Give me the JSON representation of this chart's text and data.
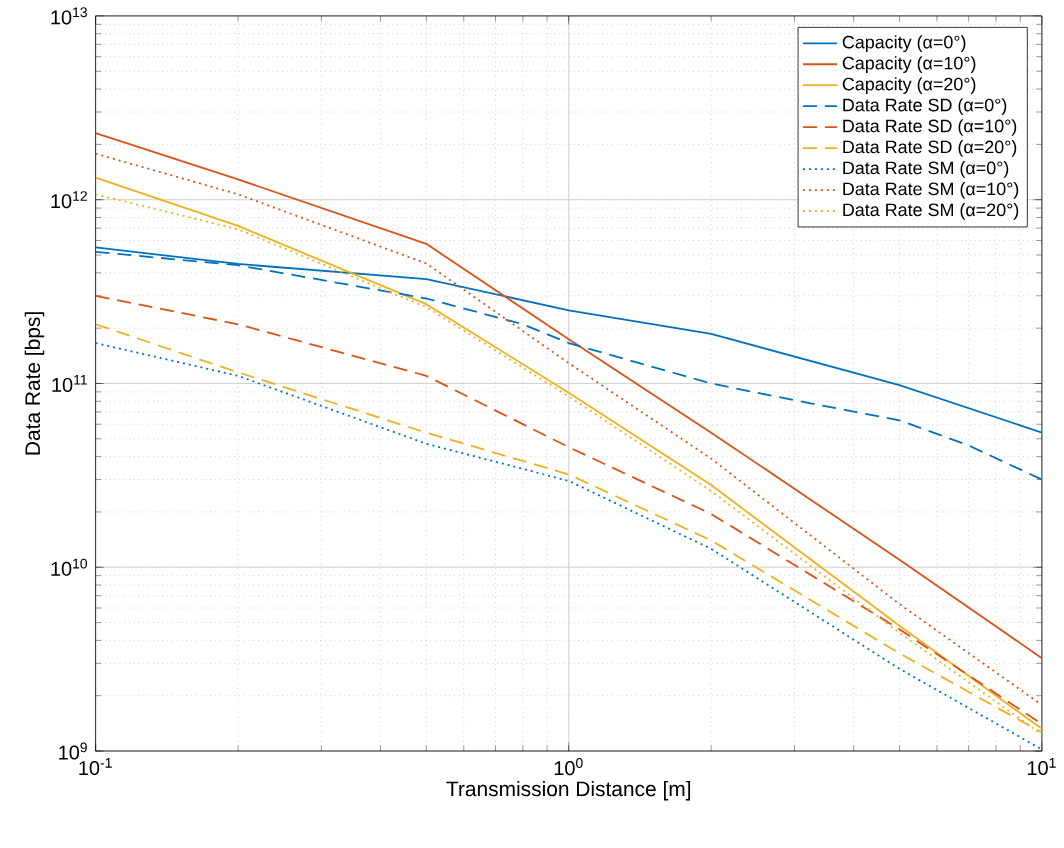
{
  "chart_data": {
    "type": "line",
    "xlabel": "Transmission Distance [m]",
    "ylabel": "Data Rate [bps]",
    "log": "xy",
    "grid": true,
    "legend": "top right",
    "xlim": [
      0.1,
      10
    ],
    "ylim": [
      1000000000.0,
      10000000000000.0
    ],
    "xticks": [
      {
        "value": 0.1,
        "label": "10$^{-1}$"
      },
      {
        "value": 1,
        "label": "10$^{0}$"
      },
      {
        "value": 10,
        "label": "10$^{1}$"
      }
    ],
    "yticks": [
      {
        "value": 1000000000.0,
        "label": "10$^{9}$"
      },
      {
        "value": 10000000000.0,
        "label": "10$^{10}$"
      },
      {
        "value": 100000000000.0,
        "label": "10$^{11}$"
      },
      {
        "value": 1000000000000.0,
        "label": "10$^{12}$"
      },
      {
        "value": 10000000000000.0,
        "label": "10$^{13}$"
      }
    ],
    "series": [
      {
        "name": "Capacity (α=0°)",
        "color": "#0072bd",
        "line_style": "solid",
        "x": [
          0.1,
          0.2,
          0.5,
          1,
          2,
          5,
          10
        ],
        "values": [
          550000000000.0,
          447000000000.0,
          370000000000.0,
          250000000000.0,
          186000000000.0,
          98000000000.0,
          54000000000.0
        ]
      },
      {
        "name": "Capacity (α=10°)",
        "color": "#d95319",
        "line_style": "solid",
        "x": [
          0.1,
          0.2,
          0.5,
          1,
          2,
          5,
          10
        ],
        "values": [
          2300000000000.0,
          1290000000000.0,
          575000000000.0,
          174000000000.0,
          54000000000.0,
          11000000000.0,
          3200000000.0
        ]
      },
      {
        "name": "Capacity (α=20°)",
        "color": "#edb120",
        "line_style": "solid",
        "x": [
          0.1,
          0.2,
          0.5,
          1,
          2,
          5,
          10
        ],
        "values": [
          1320000000000.0,
          720000000000.0,
          270000000000.0,
          89000000000.0,
          28000000000.0,
          4800000000.0,
          1320000000.0
        ]
      },
      {
        "name": "Data Rate SD (α=0°)",
        "color": "#0072bd",
        "line_style": "dashed",
        "x": [
          0.1,
          0.2,
          0.5,
          0.8,
          1,
          2,
          3,
          5,
          7,
          10
        ],
        "values": [
          520000000000.0,
          440000000000.0,
          290000000000.0,
          210000000000.0,
          166000000000.0,
          100000000000.0,
          81000000000.0,
          63000000000.0,
          46000000000.0,
          30000000000.0
        ]
      },
      {
        "name": "Data Rate SD (α=10°)",
        "color": "#d95319",
        "line_style": "dashed",
        "x": [
          0.1,
          0.2,
          0.5,
          1,
          2,
          5,
          10
        ],
        "values": [
          300000000000.0,
          210000000000.0,
          110000000000.0,
          45000000000.0,
          19500000000.0,
          4600000000.0,
          1400000000.0
        ]
      },
      {
        "name": "Data Rate SD (α=20°)",
        "color": "#edb120",
        "line_style": "dashed",
        "x": [
          0.1,
          0.2,
          0.5,
          1,
          2,
          5,
          10
        ],
        "values": [
          210000000000.0,
          115000000000.0,
          54000000000.0,
          32000000000.0,
          14000000000.0,
          3400000000.0,
          1260000000.0
        ]
      },
      {
        "name": "Data Rate SM (α=0°)",
        "color": "#0072bd",
        "line_style": "dotted",
        "x": [
          0.1,
          0.2,
          0.5,
          1,
          2,
          5,
          10
        ],
        "values": [
          166000000000.0,
          110000000000.0,
          47000000000.0,
          29500000000.0,
          12600000000.0,
          2800000000.0,
          1020000000.0
        ]
      },
      {
        "name": "Data Rate SM (α=10°)",
        "color": "#d95319",
        "line_style": "dotted",
        "x": [
          0.1,
          0.2,
          0.5,
          1,
          2,
          5,
          10
        ],
        "values": [
          1780000000000.0,
          1070000000000.0,
          450000000000.0,
          129000000000.0,
          39000000000.0,
          6300000000.0,
          1780000000.0
        ]
      },
      {
        "name": "Data Rate SM (α=20°)",
        "color": "#edb120",
        "line_style": "dotted",
        "x": [
          0.1,
          0.2,
          0.5,
          1,
          2,
          5,
          10
        ],
        "values": [
          1070000000000.0,
          690000000000.0,
          260000000000.0,
          85000000000.0,
          26000000000.0,
          4400000000.0,
          1230000000.0
        ]
      }
    ]
  }
}
